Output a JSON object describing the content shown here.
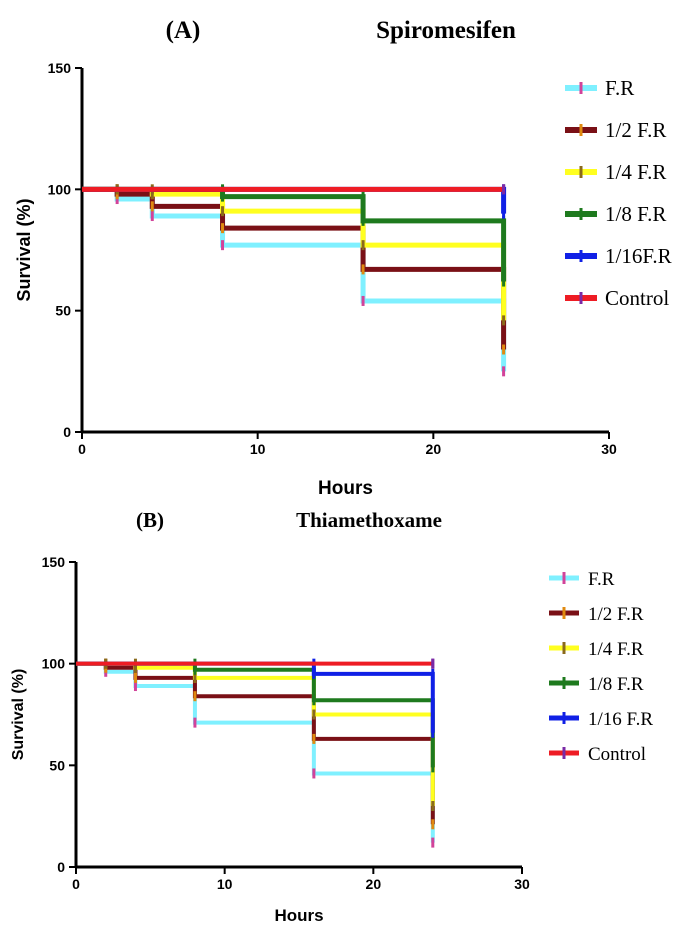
{
  "chart_data": [
    {
      "type": "line",
      "panel_label": "(A)",
      "title": "Spiromesifen",
      "xlabel": "Hours",
      "ylabel": "Survival (%)",
      "xlim": [
        0,
        30
      ],
      "ylim": [
        0,
        150
      ],
      "xticks": [
        "0",
        "10",
        "20",
        "30"
      ],
      "yticks": [
        "0",
        "50",
        "100",
        "150"
      ],
      "grid": false,
      "legend_position": "right",
      "step": true,
      "series": [
        {
          "name": "F.R",
          "color": "#7ff0ff",
          "tick_color": "#d1439a",
          "x": [
            0,
            2,
            4,
            8,
            16,
            24
          ],
          "y": [
            100,
            96,
            89,
            77,
            54,
            25
          ]
        },
        {
          "name": "1/2 F.R",
          "color": "#7a1016",
          "tick_color": "#e08a10",
          "x": [
            0,
            2,
            4,
            8,
            16,
            24
          ],
          "y": [
            100,
            98,
            93,
            84,
            67,
            34
          ]
        },
        {
          "name": "1/4 F.R",
          "color": "#ffff20",
          "tick_color": "#8a6a1a",
          "x": [
            0,
            2,
            4,
            8,
            16,
            24
          ],
          "y": [
            100,
            100,
            98,
            91,
            77,
            46
          ]
        },
        {
          "name": "1/8 F.R",
          "color": "#1e7a1e",
          "tick_color": "#1e7a1e",
          "x": [
            0,
            8,
            16,
            24
          ],
          "y": [
            100,
            97,
            87,
            62
          ]
        },
        {
          "name": "1/16F.R",
          "color": "#1020e6",
          "tick_color": "#1020e6",
          "x": [
            0,
            24
          ],
          "y": [
            100,
            90
          ]
        },
        {
          "name": "Control",
          "color": "#ee1c24",
          "tick_color": "#7a2aa6",
          "x": [
            0,
            24
          ],
          "y": [
            100,
            100
          ]
        }
      ]
    },
    {
      "type": "line",
      "panel_label": "(B)",
      "title": "Thiamethoxame",
      "xlabel": "Hours",
      "ylabel": "Survival (%)",
      "xlim": [
        0,
        30
      ],
      "ylim": [
        0,
        150
      ],
      "xticks": [
        "0",
        "10",
        "20",
        "30"
      ],
      "yticks": [
        "0",
        "50",
        "100",
        "150"
      ],
      "grid": false,
      "legend_position": "right",
      "step": true,
      "series": [
        {
          "name": "F.R",
          "color": "#7ff0ff",
          "tick_color": "#d1439a",
          "x": [
            0,
            2,
            4,
            8,
            16,
            24
          ],
          "y": [
            100,
            96,
            89,
            71,
            46,
            12
          ]
        },
        {
          "name": "1/2 F.R",
          "color": "#7a1016",
          "tick_color": "#e08a10",
          "x": [
            0,
            2,
            4,
            8,
            16,
            24
          ],
          "y": [
            100,
            98,
            93,
            84,
            63,
            21
          ]
        },
        {
          "name": "1/4 F.R",
          "color": "#ffff20",
          "tick_color": "#8a6a1a",
          "x": [
            0,
            2,
            4,
            8,
            16,
            24
          ],
          "y": [
            100,
            100,
            98,
            93,
            75,
            30
          ]
        },
        {
          "name": "1/8 F.R",
          "color": "#1e7a1e",
          "tick_color": "#1e7a1e",
          "x": [
            0,
            8,
            16,
            24
          ],
          "y": [
            100,
            97,
            82,
            49
          ]
        },
        {
          "name": "1/16 F.R",
          "color": "#1020e6",
          "tick_color": "#1020e6",
          "x": [
            0,
            16,
            24
          ],
          "y": [
            100,
            95,
            66
          ]
        },
        {
          "name": "Control",
          "color": "#ee1c24",
          "tick_color": "#7a2aa6",
          "x": [
            0,
            24
          ],
          "y": [
            100,
            100
          ]
        }
      ]
    }
  ]
}
